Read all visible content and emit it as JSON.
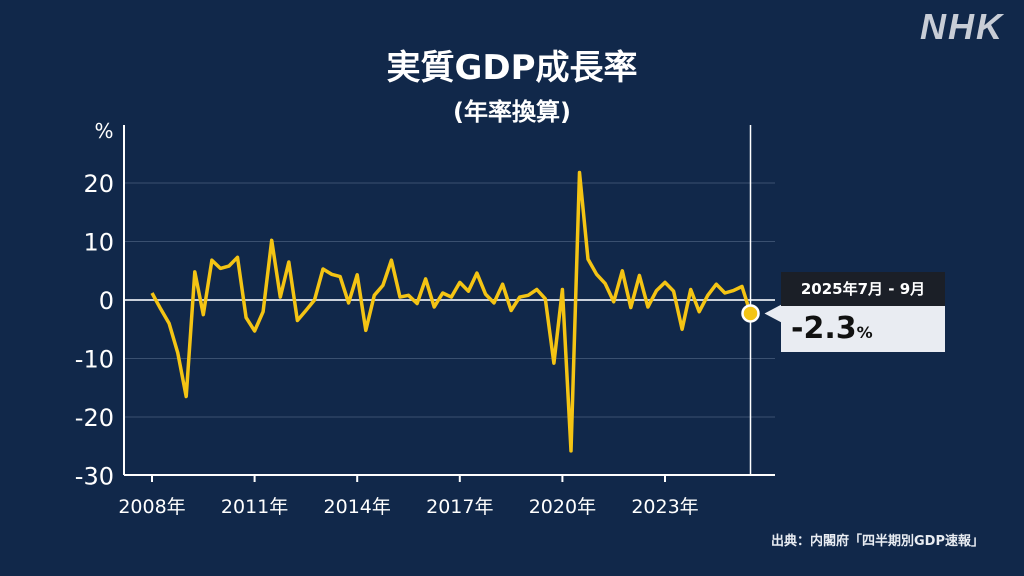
{
  "logo": "NHK",
  "source": "出典：内閣府「四半期別GDP速報」",
  "callout": {
    "date": "2025年7月 - 9月",
    "value": "-2.3",
    "unit": "%"
  },
  "colors": {
    "background": "#11284a",
    "line": "#f4c414",
    "grid": "#3a5070",
    "zero": "#c9d0da"
  },
  "chart_data": {
    "type": "line",
    "title": "実質GDP成長率",
    "subtitle": "(年率換算)",
    "ylabel": "%",
    "ylim": [
      -30,
      25
    ],
    "yticks": [
      20,
      10,
      0,
      -10,
      -20,
      -30
    ],
    "xticks": [
      {
        "label": "2008年",
        "x": 2008.0
      },
      {
        "label": "2011年",
        "x": 2011.0
      },
      {
        "label": "2014年",
        "x": 2014.0
      },
      {
        "label": "2017年",
        "x": 2017.0
      },
      {
        "label": "2020年",
        "x": 2020.0
      },
      {
        "label": "2023年",
        "x": 2023.0
      }
    ],
    "grid": true,
    "series": [
      {
        "values": [
          [
            2008.0,
            1.2
          ],
          [
            2008.25,
            -1.5
          ],
          [
            2008.5,
            -4.0
          ],
          [
            2008.75,
            -9.0
          ],
          [
            2009.0,
            -16.5
          ],
          [
            2009.25,
            4.8
          ],
          [
            2009.5,
            -2.5
          ],
          [
            2009.75,
            6.8
          ],
          [
            2010.0,
            5.4
          ],
          [
            2010.25,
            5.8
          ],
          [
            2010.5,
            7.3
          ],
          [
            2010.75,
            -3.0
          ],
          [
            2011.0,
            -5.3
          ],
          [
            2011.25,
            -2.0
          ],
          [
            2011.5,
            10.2
          ],
          [
            2011.75,
            0.5
          ],
          [
            2012.0,
            6.5
          ],
          [
            2012.25,
            -3.5
          ],
          [
            2012.5,
            -1.8
          ],
          [
            2012.75,
            0.0
          ],
          [
            2013.0,
            5.3
          ],
          [
            2013.25,
            4.4
          ],
          [
            2013.5,
            4.0
          ],
          [
            2013.75,
            -0.5
          ],
          [
            2014.0,
            4.3
          ],
          [
            2014.25,
            -5.2
          ],
          [
            2014.5,
            0.8
          ],
          [
            2014.75,
            2.5
          ],
          [
            2015.0,
            6.8
          ],
          [
            2015.25,
            0.5
          ],
          [
            2015.5,
            0.8
          ],
          [
            2015.75,
            -0.6
          ],
          [
            2016.0,
            3.6
          ],
          [
            2016.25,
            -1.2
          ],
          [
            2016.5,
            1.2
          ],
          [
            2016.75,
            0.5
          ],
          [
            2017.0,
            3.0
          ],
          [
            2017.25,
            1.5
          ],
          [
            2017.5,
            4.6
          ],
          [
            2017.75,
            1.0
          ],
          [
            2018.0,
            -0.5
          ],
          [
            2018.25,
            2.7
          ],
          [
            2018.5,
            -1.8
          ],
          [
            2018.75,
            0.5
          ],
          [
            2019.0,
            0.8
          ],
          [
            2019.25,
            1.8
          ],
          [
            2019.5,
            0.2
          ],
          [
            2019.75,
            -10.8
          ],
          [
            2020.0,
            1.8
          ],
          [
            2020.25,
            -25.8
          ],
          [
            2020.5,
            21.8
          ],
          [
            2020.75,
            7.0
          ],
          [
            2021.0,
            4.4
          ],
          [
            2021.25,
            2.8
          ],
          [
            2021.5,
            -0.3
          ],
          [
            2021.75,
            5.0
          ],
          [
            2022.0,
            -1.3
          ],
          [
            2022.25,
            4.2
          ],
          [
            2022.5,
            -1.2
          ],
          [
            2022.75,
            1.6
          ],
          [
            2023.0,
            3.0
          ],
          [
            2023.25,
            1.5
          ],
          [
            2023.5,
            -5.0
          ],
          [
            2023.75,
            1.8
          ],
          [
            2024.0,
            -2.0
          ],
          [
            2024.25,
            0.8
          ],
          [
            2024.5,
            2.7
          ],
          [
            2024.75,
            1.2
          ],
          [
            2025.0,
            1.6
          ],
          [
            2025.25,
            2.3
          ],
          [
            2025.5,
            -2.3
          ]
        ]
      }
    ]
  }
}
